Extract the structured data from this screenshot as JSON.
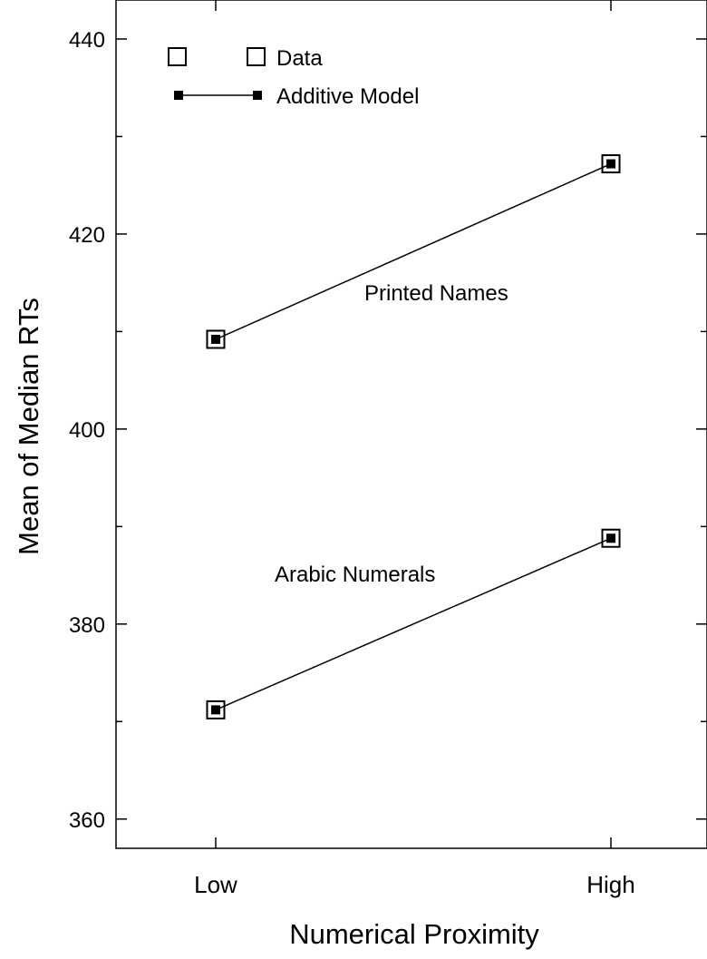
{
  "chart_data": {
    "type": "line",
    "title": "",
    "xlabel": "Numerical Proximity",
    "ylabel": "Mean of Median RTs",
    "categories": [
      "Low",
      "High"
    ],
    "ylim": [
      357,
      444
    ],
    "yticks_major": [
      360,
      380,
      400,
      420,
      440
    ],
    "yticks_minor": [
      370,
      390,
      410,
      430
    ],
    "grid": false,
    "legend": {
      "placement": "top-left",
      "entries": [
        {
          "label": "Data",
          "marker": "open-square"
        },
        {
          "label": "Additive Model",
          "marker": "filled-square-with-line"
        }
      ]
    },
    "series": [
      {
        "name": "Printed Names",
        "data": [
          409.2,
          427.2
        ],
        "model": [
          409.2,
          427.2
        ]
      },
      {
        "name": "Arabic Numerals",
        "data": [
          371.2,
          388.8
        ],
        "model": [
          371.2,
          388.8
        ]
      }
    ]
  }
}
